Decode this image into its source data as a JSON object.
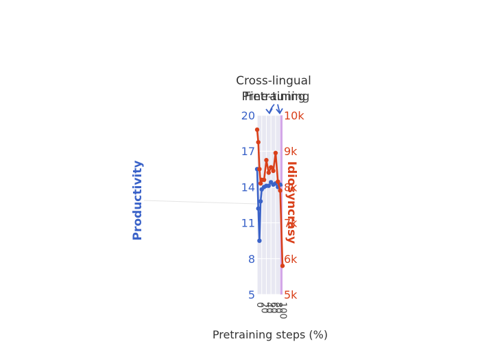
{
  "chart_data": {
    "type": "line",
    "xlabel": "Pretraining steps (%)",
    "y_left_label": "Productivity",
    "y_right_label": "Idiosyncrasy",
    "y_left_ticks": [
      "5",
      "8",
      "11",
      "14",
      "17",
      "20"
    ],
    "y_right_ticks": [
      "5k",
      "6k",
      "7k",
      "8k",
      "9k",
      "10k"
    ],
    "x_ticks": [
      "0",
      "20",
      "40",
      "60",
      "80",
      "100"
    ],
    "ylim_left": [
      5,
      20
    ],
    "ylim_right": [
      5000,
      10000
    ],
    "xlim": [
      0,
      110
    ],
    "grid": true,
    "annotations": [
      {
        "text": "Cross-lingual",
        "x": 60
      },
      {
        "text": "Pretraining",
        "x": 60
      },
      {
        "text": "Fine-tuning",
        "x": 100
      }
    ],
    "series": [
      {
        "name": "Productivity",
        "axis": "left",
        "color": "#3a62c8",
        "x": [
          0,
          5,
          10,
          15,
          20,
          30,
          40,
          50,
          60,
          70,
          80,
          90,
          100,
          110
        ],
        "y": [
          15.5,
          12.2,
          9.5,
          12.8,
          13.8,
          14.0,
          14.1,
          14.1,
          14.4,
          14.2,
          14.3,
          14.0,
          14.2,
          14.1
        ]
      },
      {
        "name": "Idiosyncrasy",
        "axis": "right",
        "color": "#d9401a",
        "x": [
          0,
          5,
          10,
          15,
          20,
          30,
          40,
          50,
          60,
          70,
          80,
          90,
          100,
          110
        ],
        "y": [
          9600,
          9250,
          8500,
          8100,
          8200,
          8200,
          8750,
          8400,
          8550,
          8450,
          8950,
          8150,
          7900,
          5800
        ]
      }
    ]
  }
}
